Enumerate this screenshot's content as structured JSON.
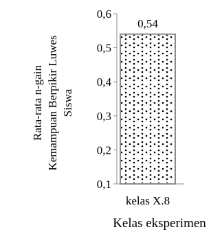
{
  "chart_data": {
    "type": "bar",
    "categories": [
      "kelas X.8"
    ],
    "values": [
      0.54
    ],
    "data_labels": [
      "0,54"
    ],
    "title": "",
    "xlabel": "Kelas eksperimen",
    "ylabel_lines": [
      "Rata-rata n-gain",
      "Kemampuan Berpikir Luwes",
      "Siswa"
    ],
    "ylim": [
      0.1,
      0.6
    ],
    "yticks": [
      0.1,
      0.2,
      0.3,
      0.4,
      0.5,
      0.6
    ],
    "ytick_labels": [
      "0,1",
      "0,2",
      "0,3",
      "0,4",
      "0,5",
      "0,6"
    ],
    "grid": false,
    "legend": "none",
    "bar_pattern": "dotted",
    "colors": {
      "bar_outline": "#8c8c8c",
      "bar_pattern_dots": "#000000",
      "axis": "#8c8c8c"
    }
  }
}
